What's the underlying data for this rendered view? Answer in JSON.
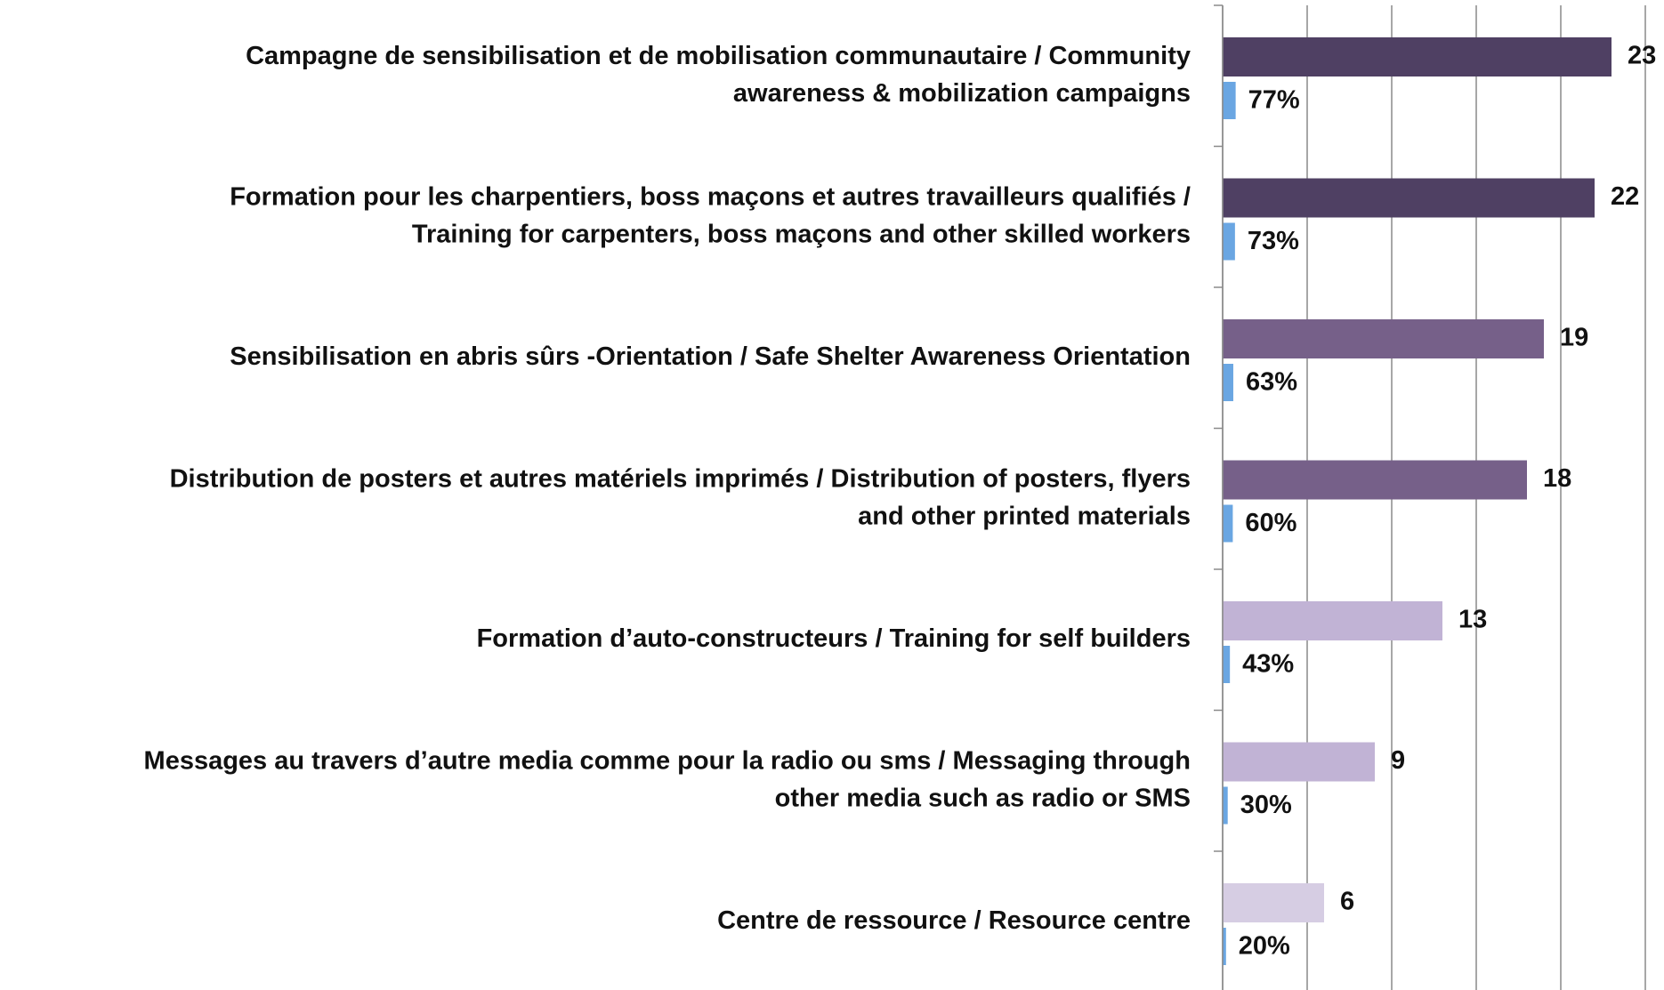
{
  "chart_data": {
    "type": "bar",
    "orientation": "horizontal",
    "categories": [
      [
        "Campagne de sensibilisation et de mobilisation communautaire / Community",
        "awareness & mobilization campaigns"
      ],
      [
        "Formation pour les charpentiers, boss maçons et autres travailleurs qualifiés /",
        "Training for carpenters, boss maçons and other skilled workers"
      ],
      [
        "Sensibilisation en abris sûrs -Orientation / Safe Shelter Awareness Orientation"
      ],
      [
        "Distribution de posters et autres matériels imprimés / Distribution of posters, flyers",
        "and other printed materials"
      ],
      [
        "Formation d’auto-constructeurs / Training for self builders"
      ],
      [
        "Messages au travers d’autre media comme pour la radio ou sms / Messaging through",
        "other media such as radio or SMS"
      ],
      [
        "Centre de ressource  / Resource centre"
      ]
    ],
    "series": [
      {
        "colors": [
          "#4f4063",
          "#4f4063",
          "#766089",
          "#766089",
          "#c1b3d5",
          "#c1b3d5",
          "#d6cde3"
        ],
        "values": [
          23,
          22,
          19,
          18,
          13,
          9,
          6
        ]
      },
      {
        "color": "#6aa6e2",
        "values": [
          0.77,
          0.73,
          0.63,
          0.6,
          0.43,
          0.3,
          0.2
        ],
        "value_labels": [
          "77%",
          "73%",
          "63%",
          "60%",
          "43%",
          "30%",
          "20%"
        ]
      }
    ],
    "xlim": [
      0,
      25
    ],
    "xticks": [
      0,
      5,
      10,
      15,
      20,
      25
    ],
    "grid": true
  }
}
